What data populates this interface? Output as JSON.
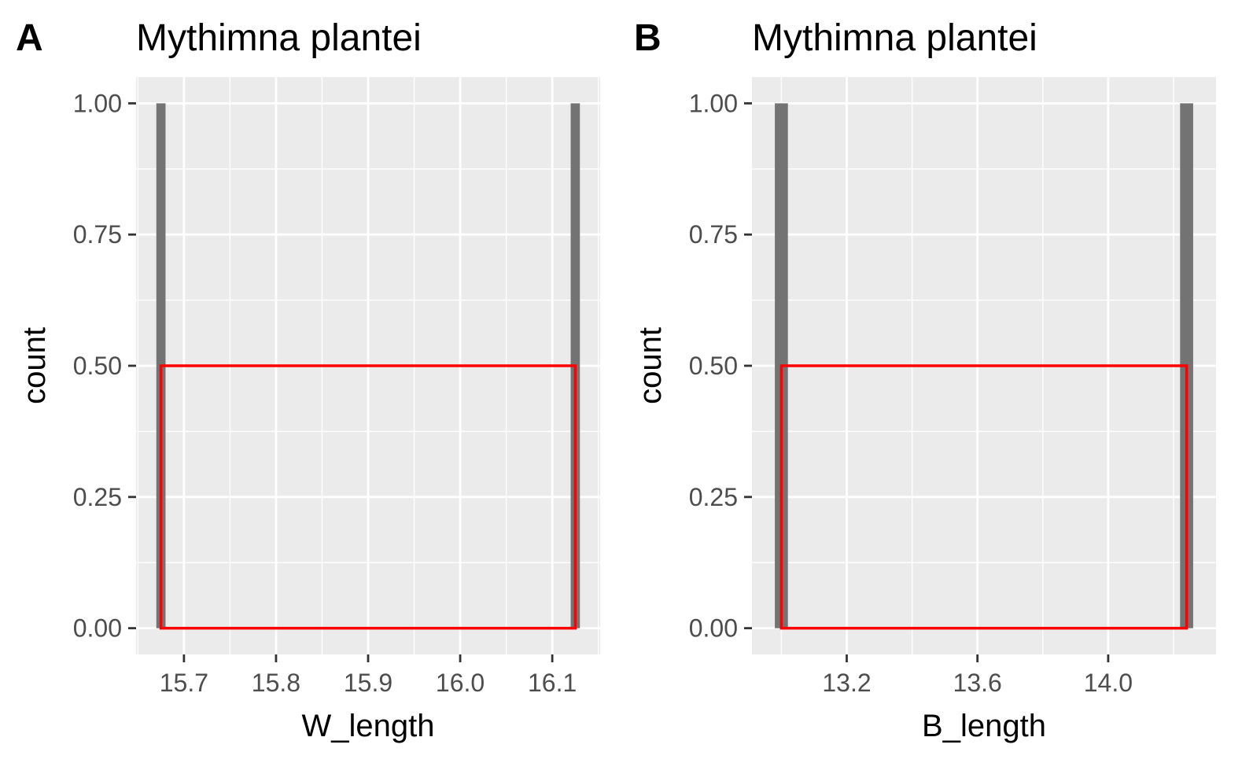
{
  "chart_data": [
    {
      "type": "bar",
      "tag": "A",
      "title": "Mythimna plantei",
      "xlabel": "W_length",
      "ylabel": "count",
      "bars": [
        {
          "x_start": 15.67,
          "x_end": 15.68,
          "count": 1
        },
        {
          "x_start": 16.12,
          "x_end": 16.13,
          "count": 1
        }
      ],
      "x_ticks": [
        15.7,
        15.8,
        15.9,
        16.0,
        16.1
      ],
      "x_tick_labels": [
        "15.7",
        "15.8",
        "15.9",
        "16.0",
        "16.1"
      ],
      "y_ticks": [
        0,
        0.25,
        0.5,
        0.75,
        1
      ],
      "y_tick_labels": [
        "0.00",
        "0.25",
        "0.50",
        "0.75",
        "1.00"
      ],
      "xlim": [
        15.648,
        16.152
      ],
      "ylim": [
        -0.05,
        1.05
      ],
      "highlight_box": {
        "x": [
          15.675,
          16.125
        ],
        "y": [
          0,
          0.5
        ],
        "color": "#ff0000"
      },
      "grid": true,
      "panel_background": "#ebebeb",
      "bar_color": "#737373"
    },
    {
      "type": "bar",
      "tag": "B",
      "title": "Mythimna plantei",
      "xlabel": "B_length",
      "ylabel": "count",
      "bars": [
        {
          "x_start": 12.98,
          "x_end": 13.02,
          "count": 1
        },
        {
          "x_start": 14.22,
          "x_end": 14.26,
          "count": 1
        }
      ],
      "x_ticks": [
        13.2,
        13.6,
        14.0
      ],
      "x_tick_labels": [
        "13.2",
        "13.6",
        "14.0"
      ],
      "y_ticks": [
        0,
        0.25,
        0.5,
        0.75,
        1
      ],
      "y_tick_labels": [
        "0.00",
        "0.25",
        "0.50",
        "0.75",
        "1.00"
      ],
      "xlim": [
        12.91,
        14.33
      ],
      "ylim": [
        -0.05,
        1.05
      ],
      "highlight_box": {
        "x": [
          13.0,
          14.24
        ],
        "y": [
          0,
          0.5
        ],
        "color": "#ff0000"
      },
      "grid": true,
      "panel_background": "#ebebeb",
      "bar_color": "#737373"
    }
  ]
}
